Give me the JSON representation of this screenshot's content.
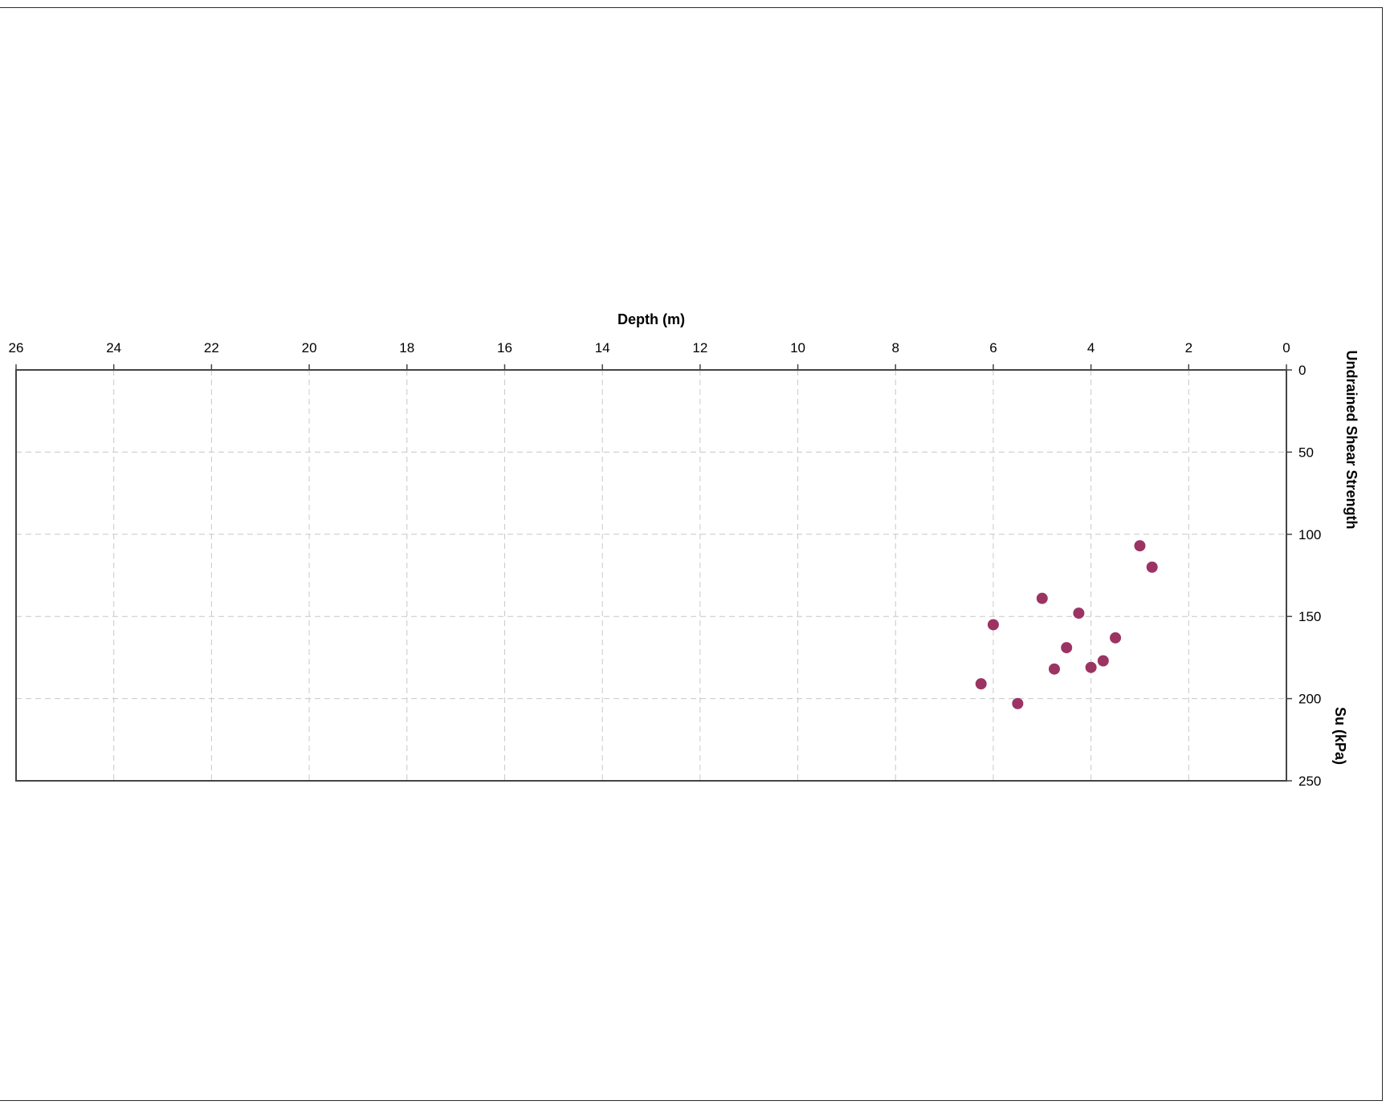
{
  "chart_data": {
    "type": "scatter",
    "title": "",
    "xlabel": "Depth (m)",
    "ylabel_main": "Undrained Shear Strength",
    "ylabel_unit": "Su (kPa)",
    "x_axis_position": "top",
    "x_axis_reversed": true,
    "y_axis_position": "right",
    "y_axis_inverted": true,
    "xlim": [
      0,
      26
    ],
    "ylim": [
      0,
      250
    ],
    "x_ticks": [
      "0",
      "2",
      "4",
      "6",
      "8",
      "10",
      "12",
      "14",
      "16",
      "18",
      "20",
      "22",
      "24",
      "26"
    ],
    "y_ticks": [
      "0",
      "50",
      "100",
      "150",
      "200",
      "250"
    ],
    "grid": true,
    "marker_color": "#9b3462",
    "series": [
      {
        "points": [
          {
            "x": 3.0,
            "y": 107
          },
          {
            "x": 2.75,
            "y": 120
          },
          {
            "x": 5.0,
            "y": 139
          },
          {
            "x": 4.25,
            "y": 148
          },
          {
            "x": 6.0,
            "y": 155
          },
          {
            "x": 3.5,
            "y": 163
          },
          {
            "x": 4.5,
            "y": 169
          },
          {
            "x": 3.75,
            "y": 177
          },
          {
            "x": 4.75,
            "y": 182
          },
          {
            "x": 4.0,
            "y": 181
          },
          {
            "x": 6.25,
            "y": 191
          },
          {
            "x": 5.5,
            "y": 203
          }
        ]
      }
    ]
  }
}
